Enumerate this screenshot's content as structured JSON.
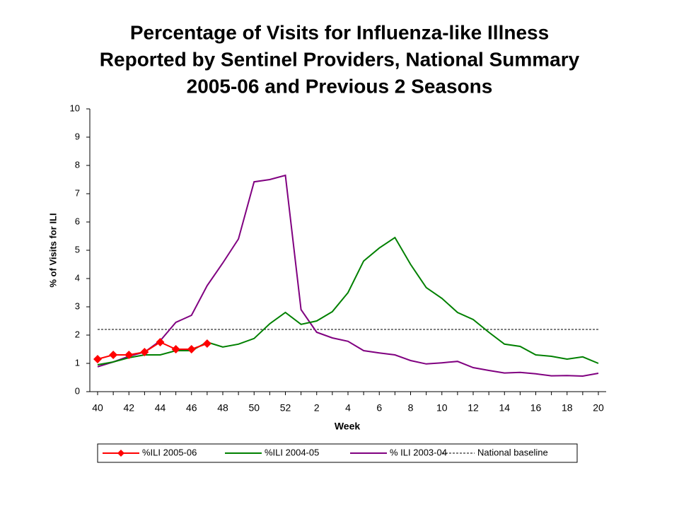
{
  "chart_data": {
    "type": "line",
    "title": [
      "Percentage of Visits for Influenza-like Illness",
      "Reported by Sentinel Providers, National Summary",
      "2005-06 and Previous 2 Seasons"
    ],
    "x_label": "Week",
    "y_label": "% of Visits for ILI",
    "categories": [
      "40",
      null,
      "42",
      null,
      "44",
      null,
      "46",
      null,
      "48",
      null,
      "50",
      null,
      "52",
      null,
      "2",
      null,
      "4",
      null,
      "6",
      null,
      "8",
      null,
      "10",
      null,
      "12",
      null,
      "14",
      null,
      "16",
      null,
      "18",
      null,
      "20"
    ],
    "ylim": [
      0,
      10
    ],
    "yticks": [
      0,
      1,
      2,
      3,
      4,
      5,
      6,
      7,
      8,
      9,
      10
    ],
    "series": [
      {
        "name": "%ILI 2005-06",
        "color": "#ff0000",
        "marker": "diamond",
        "values": [
          1.15,
          1.3,
          1.3,
          1.4,
          1.75,
          1.5,
          1.5,
          1.7,
          null,
          null,
          null,
          null,
          null,
          null,
          null,
          null,
          null,
          null,
          null,
          null,
          null,
          null,
          null,
          null,
          null,
          null,
          null,
          null,
          null,
          null,
          null,
          null,
          null
        ]
      },
      {
        "name": "%ILI 2004-05",
        "color": "#008000",
        "values": [
          0.95,
          1.05,
          1.2,
          1.3,
          1.3,
          1.45,
          1.45,
          1.75,
          1.58,
          1.68,
          1.88,
          2.4,
          2.8,
          2.38,
          2.5,
          2.83,
          3.5,
          4.62,
          5.08,
          5.45,
          4.5,
          3.68,
          3.3,
          2.8,
          2.55,
          2.1,
          1.68,
          1.6,
          1.3,
          1.25,
          1.15,
          1.23,
          1.0
        ]
      },
      {
        "name": "% ILI 2003-04",
        "color": "#800080",
        "values": [
          0.88,
          1.05,
          1.25,
          1.4,
          1.8,
          2.45,
          2.7,
          3.75,
          4.55,
          5.4,
          7.42,
          7.5,
          7.65,
          2.9,
          2.1,
          1.9,
          1.78,
          1.45,
          1.37,
          1.3,
          1.1,
          0.98,
          1.02,
          1.07,
          0.85,
          0.75,
          0.66,
          0.68,
          0.63,
          0.56,
          0.57,
          0.55,
          0.65
        ]
      }
    ],
    "baseline": {
      "name": "National baseline",
      "value": 2.2,
      "color": "#000000"
    },
    "legend": "bottom"
  }
}
